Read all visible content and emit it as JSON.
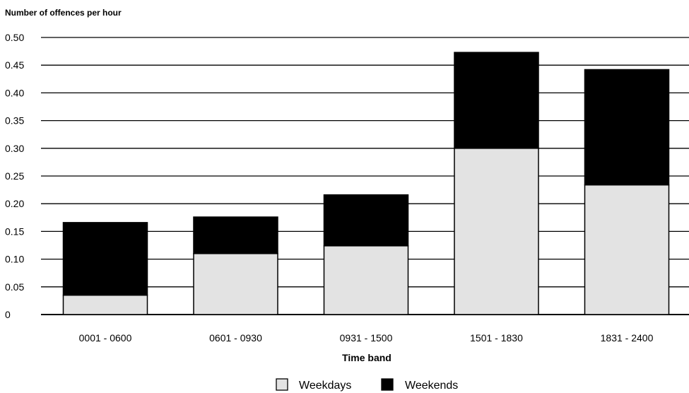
{
  "chart_data": {
    "type": "bar",
    "stacked": true,
    "title": "",
    "ylabel": "Number of offences per hour",
    "xlabel": "Time band",
    "ylim": [
      0,
      0.5
    ],
    "yticks": [
      "0",
      "0.05",
      "0.10",
      "0.15",
      "0.20",
      "0.25",
      "0.30",
      "0.35",
      "0.40",
      "0.45",
      "0.50"
    ],
    "categories": [
      "0001 - 0600",
      "0601 - 0930",
      "0931 - 1500",
      "1501 - 1830",
      "1831 - 2400"
    ],
    "series": [
      {
        "name": "Weekdays",
        "color": "#e3e3e3",
        "values": [
          0.035,
          0.11,
          0.124,
          0.3,
          0.234
        ]
      },
      {
        "name": "Weekends",
        "color": "#000000",
        "values": [
          0.131,
          0.066,
          0.092,
          0.173,
          0.208
        ]
      }
    ],
    "grid": true,
    "legend": "bottom"
  }
}
